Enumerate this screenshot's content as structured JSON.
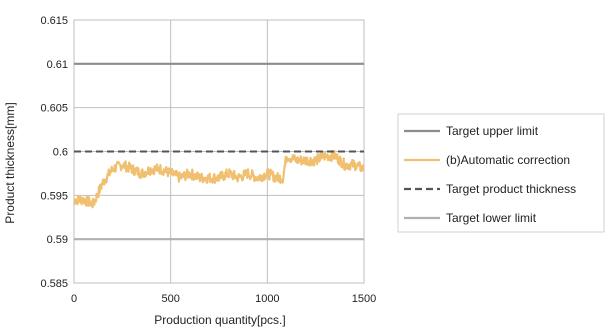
{
  "chart_data": {
    "type": "line",
    "title": "",
    "xlabel": "Production quantity[pcs.]",
    "ylabel": "Product thickness[mm]",
    "xlim": [
      0,
      1500
    ],
    "ylim": [
      0.585,
      0.615
    ],
    "x_ticks": [
      "0",
      "500",
      "1000",
      "1500"
    ],
    "y_ticks": [
      "0.585",
      "0.59",
      "0.595",
      "0.6",
      "0.605",
      "0.61",
      "0.615"
    ],
    "grid": true,
    "legend_position": "right",
    "series": [
      {
        "name": "Target upper limit",
        "style": "solid",
        "color": "#8c8c8c",
        "x": [
          0,
          1500
        ],
        "y": [
          0.61,
          0.61
        ]
      },
      {
        "name": "(b)Automatic correction",
        "style": "solid",
        "color": "#f0c070",
        "x": [
          0,
          50,
          100,
          120,
          150,
          200,
          250,
          300,
          350,
          400,
          450,
          500,
          550,
          600,
          650,
          700,
          750,
          800,
          850,
          900,
          950,
          1000,
          1050,
          1080,
          1100,
          1150,
          1200,
          1250,
          1300,
          1350,
          1400,
          1450,
          1500
        ],
        "y": [
          0.5945,
          0.5945,
          0.594,
          0.595,
          0.5965,
          0.598,
          0.5985,
          0.598,
          0.5975,
          0.598,
          0.598,
          0.5975,
          0.597,
          0.5975,
          0.597,
          0.597,
          0.597,
          0.5975,
          0.597,
          0.5975,
          0.597,
          0.5975,
          0.597,
          0.597,
          0.5995,
          0.599,
          0.599,
          0.599,
          0.5995,
          0.5995,
          0.5985,
          0.5985,
          0.598
        ]
      },
      {
        "name": "Target product thickness",
        "style": "dashed",
        "color": "#555555",
        "x": [
          0,
          1500
        ],
        "y": [
          0.6,
          0.6
        ]
      },
      {
        "name": "Target lower limit",
        "style": "solid",
        "color": "#b0b0b0",
        "x": [
          0,
          1500
        ],
        "y": [
          0.59,
          0.59
        ]
      }
    ]
  }
}
